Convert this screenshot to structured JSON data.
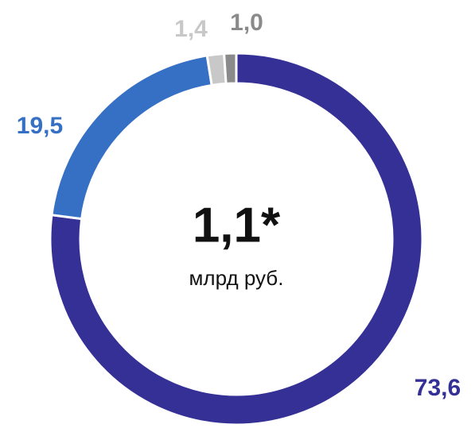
{
  "chart_data": {
    "type": "pie",
    "donut": true,
    "values": [
      73.6,
      19.5,
      1.4,
      1.0
    ],
    "value_labels": [
      "73,6",
      "19,5",
      "1,4",
      "1,0"
    ],
    "colors": [
      "#353096",
      "#3670c4",
      "#c8c8c8",
      "#8a8a8a"
    ],
    "center_value": "1,1*",
    "center_unit": "млрд руб."
  }
}
